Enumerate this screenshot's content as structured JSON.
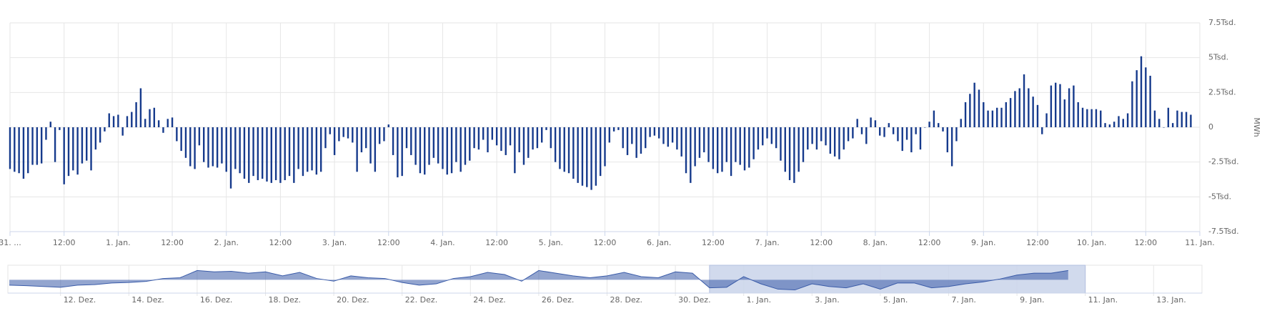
{
  "chart_data": [
    {
      "type": "bar",
      "y_label": "MWh",
      "color": "#163a8c",
      "grid": true,
      "xlim": [
        "31.12. 00:00",
        "11.01. 00:00"
      ],
      "ylim": [
        -7500,
        7500
      ],
      "yticks": [
        {
          "value": 7500,
          "label": "7.5Tsd."
        },
        {
          "value": 5000,
          "label": "5Tsd."
        },
        {
          "value": 2500,
          "label": "2.5Tsd."
        },
        0,
        {
          "value": -2500,
          "label": "-2.5Tsd."
        },
        {
          "value": -5000,
          "label": "-5Tsd."
        },
        {
          "value": -7500,
          "label": "-7.5Tsd."
        }
      ],
      "xticks": [
        {
          "value": "31.12. 00:00",
          "label": "31. ..."
        },
        {
          "value": "31.12. 12:00",
          "label": "12:00"
        },
        {
          "value": "01.01. 00:00",
          "label": "1. Jan."
        },
        {
          "value": "01.01. 12:00",
          "label": "12:00"
        },
        {
          "value": "02.01. 00:00",
          "label": "2. Jan."
        },
        {
          "value": "02.01. 12:00",
          "label": "12:00"
        },
        {
          "value": "03.01. 00:00",
          "label": "3. Jan."
        },
        {
          "value": "03.01. 12:00",
          "label": "12:00"
        },
        {
          "value": "04.01. 00:00",
          "label": "4. Jan."
        },
        {
          "value": "04.01. 12:00",
          "label": "12:00"
        },
        {
          "value": "05.01. 00:00",
          "label": "5. Jan."
        },
        {
          "value": "05.01. 12:00",
          "label": "12:00"
        },
        {
          "value": "06.01. 00:00",
          "label": "6. Jan."
        },
        {
          "value": "06.01. 12:00",
          "label": "12:00"
        },
        {
          "value": "07.01. 00:00",
          "label": "7. Jan."
        },
        {
          "value": "07.01. 12:00",
          "label": "12:00"
        },
        {
          "value": "08.01. 00:00",
          "label": "8. Jan."
        },
        {
          "value": "08.01. 12:00",
          "label": "12:00"
        },
        {
          "value": "09.01. 00:00",
          "label": "9. Jan."
        },
        {
          "value": "09.01. 12:00",
          "label": "12:00"
        },
        {
          "value": "10.01. 00:00",
          "label": "10. Jan."
        },
        {
          "value": "10.01. 12:00",
          "label": "12:00"
        },
        {
          "value": "11.01. 00:00",
          "label": "11. Jan."
        }
      ],
      "x": [
        "31.12. 00:00",
        "31.12. 01:00",
        "31.12. 02:00",
        "31.12. 03:00",
        "31.12. 04:00",
        "31.12. 05:00",
        "31.12. 06:00",
        "31.12. 07:00",
        "31.12. 08:00",
        "31.12. 09:00",
        "31.12. 10:00",
        "31.12. 11:00",
        "31.12. 12:00",
        "31.12. 13:00",
        "31.12. 14:00",
        "31.12. 15:00",
        "31.12. 16:00",
        "31.12. 17:00",
        "31.12. 18:00",
        "31.12. 19:00",
        "31.12. 20:00",
        "31.12. 21:00",
        "31.12. 22:00",
        "31.12. 23:00",
        "01.01. 00:00",
        "01.01. 01:00",
        "01.01. 02:00",
        "01.01. 03:00",
        "01.01. 04:00",
        "01.01. 05:00",
        "01.01. 06:00",
        "01.01. 07:00",
        "01.01. 08:00",
        "01.01. 09:00",
        "01.01. 10:00",
        "01.01. 11:00",
        "01.01. 12:00",
        "01.01. 13:00",
        "01.01. 14:00",
        "01.01. 15:00",
        "01.01. 16:00",
        "01.01. 17:00",
        "01.01. 18:00",
        "01.01. 19:00",
        "01.01. 20:00",
        "01.01. 21:00",
        "01.01. 22:00",
        "01.01. 23:00",
        "02.01. 00:00",
        "02.01. 01:00",
        "02.01. 02:00",
        "02.01. 03:00",
        "02.01. 04:00",
        "02.01. 05:00",
        "02.01. 06:00",
        "02.01. 07:00",
        "02.01. 08:00",
        "02.01. 09:00",
        "02.01. 10:00",
        "02.01. 11:00",
        "02.01. 12:00",
        "02.01. 13:00",
        "02.01. 14:00",
        "02.01. 15:00",
        "02.01. 16:00",
        "02.01. 17:00",
        "02.01. 18:00",
        "02.01. 19:00",
        "02.01. 20:00",
        "02.01. 21:00",
        "02.01. 22:00",
        "02.01. 23:00",
        "03.01. 00:00",
        "03.01. 01:00",
        "03.01. 02:00",
        "03.01. 03:00",
        "03.01. 04:00",
        "03.01. 05:00",
        "03.01. 06:00",
        "03.01. 07:00",
        "03.01. 08:00",
        "03.01. 09:00",
        "03.01. 10:00",
        "03.01. 11:00",
        "03.01. 12:00",
        "03.01. 13:00",
        "03.01. 14:00",
        "03.01. 15:00",
        "03.01. 16:00",
        "03.01. 17:00",
        "03.01. 18:00",
        "03.01. 19:00",
        "03.01. 20:00",
        "03.01. 21:00",
        "03.01. 22:00",
        "03.01. 23:00",
        "04.01. 00:00",
        "04.01. 01:00",
        "04.01. 02:00",
        "04.01. 03:00",
        "04.01. 04:00",
        "04.01. 05:00",
        "04.01. 06:00",
        "04.01. 07:00",
        "04.01. 08:00",
        "04.01. 09:00",
        "04.01. 10:00",
        "04.01. 11:00",
        "04.01. 12:00",
        "04.01. 13:00",
        "04.01. 14:00",
        "04.01. 15:00",
        "04.01. 16:00",
        "04.01. 17:00",
        "04.01. 18:00",
        "04.01. 19:00",
        "04.01. 20:00",
        "04.01. 21:00",
        "04.01. 22:00",
        "04.01. 23:00",
        "05.01. 00:00",
        "05.01. 01:00",
        "05.01. 02:00",
        "05.01. 03:00",
        "05.01. 04:00",
        "05.01. 05:00",
        "05.01. 06:00",
        "05.01. 07:00",
        "05.01. 08:00",
        "05.01. 09:00",
        "05.01. 10:00",
        "05.01. 11:00",
        "05.01. 12:00",
        "05.01. 13:00",
        "05.01. 14:00",
        "05.01. 15:00",
        "05.01. 16:00",
        "05.01. 17:00",
        "05.01. 18:00",
        "05.01. 19:00",
        "05.01. 20:00",
        "05.01. 21:00",
        "05.01. 22:00",
        "05.01. 23:00",
        "06.01. 00:00",
        "06.01. 01:00",
        "06.01. 02:00",
        "06.01. 03:00",
        "06.01. 04:00",
        "06.01. 05:00",
        "06.01. 06:00",
        "06.01. 07:00",
        "06.01. 08:00",
        "06.01. 09:00",
        "06.01. 10:00",
        "06.01. 11:00",
        "06.01. 12:00",
        "06.01. 13:00",
        "06.01. 14:00",
        "06.01. 15:00",
        "06.01. 16:00",
        "06.01. 17:00",
        "06.01. 18:00",
        "06.01. 19:00",
        "06.01. 20:00",
        "06.01. 21:00",
        "06.01. 22:00",
        "06.01. 23:00",
        "07.01. 00:00",
        "07.01. 01:00",
        "07.01. 02:00",
        "07.01. 03:00",
        "07.01. 04:00",
        "07.01. 05:00",
        "07.01. 06:00",
        "07.01. 07:00",
        "07.01. 08:00",
        "07.01. 09:00",
        "07.01. 10:00",
        "07.01. 11:00",
        "07.01. 12:00",
        "07.01. 13:00",
        "07.01. 14:00",
        "07.01. 15:00",
        "07.01. 16:00",
        "07.01. 17:00",
        "07.01. 18:00",
        "07.01. 19:00",
        "07.01. 20:00",
        "07.01. 21:00",
        "07.01. 22:00",
        "07.01. 23:00",
        "08.01. 00:00",
        "08.01. 01:00",
        "08.01. 02:00",
        "08.01. 03:00",
        "08.01. 04:00",
        "08.01. 05:00",
        "08.01. 06:00",
        "08.01. 07:00",
        "08.01. 08:00",
        "08.01. 09:00",
        "08.01. 10:00",
        "08.01. 11:00",
        "08.01. 12:00",
        "08.01. 13:00",
        "08.01. 14:00",
        "08.01. 15:00",
        "08.01. 16:00",
        "08.01. 17:00",
        "08.01. 18:00",
        "08.01. 19:00",
        "08.01. 20:00",
        "08.01. 21:00",
        "08.01. 22:00",
        "08.01. 23:00",
        "09.01. 00:00",
        "09.01. 01:00",
        "09.01. 02:00",
        "09.01. 03:00",
        "09.01. 04:00",
        "09.01. 05:00",
        "09.01. 06:00",
        "09.01. 07:00",
        "09.01. 08:00",
        "09.01. 09:00",
        "09.01. 10:00",
        "09.01. 11:00",
        "09.01. 12:00",
        "09.01. 13:00",
        "09.01. 14:00",
        "09.01. 15:00",
        "09.01. 16:00",
        "09.01. 17:00",
        "09.01. 18:00",
        "09.01. 19:00",
        "09.01. 20:00",
        "09.01. 21:00",
        "09.01. 22:00",
        "09.01. 23:00",
        "10.01. 00:00",
        "10.01. 01:00",
        "10.01. 02:00",
        "10.01. 03:00",
        "10.01. 04:00",
        "10.01. 05:00",
        "10.01. 06:00",
        "10.01. 07:00",
        "10.01. 08:00",
        "10.01. 09:00",
        "10.01. 10:00",
        "10.01. 11:00",
        "10.01. 12:00",
        "10.01. 13:00",
        "10.01. 14:00",
        "10.01. 15:00",
        "10.01. 16:00",
        "10.01. 17:00",
        "10.01. 18:00",
        "10.01. 19:00",
        "10.01. 20:00",
        "10.01. 21:00",
        "10.01. 22:00"
      ],
      "values": [
        -3000,
        -3200,
        -3300,
        -3700,
        -3300,
        -2700,
        -2700,
        -2600,
        -900,
        400,
        -2500,
        -200,
        -4100,
        -3500,
        -3100,
        -3400,
        -2600,
        -2400,
        -3100,
        -1600,
        -1100,
        -300,
        1000,
        800,
        900,
        -600,
        800,
        1100,
        1800,
        2800,
        600,
        1300,
        1400,
        500,
        -400,
        600,
        700,
        -1000,
        -1700,
        -2200,
        -2800,
        -3000,
        -1300,
        -2500,
        -2900,
        -2800,
        -2900,
        -2600,
        -3200,
        -4400,
        -3000,
        -3300,
        -3700,
        -4000,
        -3500,
        -3800,
        -3700,
        -3900,
        -4000,
        -3800,
        -4000,
        -3800,
        -3500,
        -4000,
        -3000,
        -3500,
        -3200,
        -3100,
        -3400,
        -3200,
        -1500,
        -500,
        -2000,
        -1000,
        -700,
        -800,
        -1100,
        -3200,
        -1800,
        -1500,
        -2600,
        -3200,
        -1200,
        -1000,
        200,
        -2000,
        -3600,
        -3500,
        -1500,
        -2000,
        -2700,
        -3300,
        -3400,
        -2700,
        -2200,
        -2600,
        -3000,
        -3400,
        -3300,
        -2500,
        -3200,
        -2700,
        -2400,
        -1500,
        -1600,
        -900,
        -1800,
        -900,
        -1300,
        -1700,
        -2000,
        -1300,
        -3300,
        -1800,
        -2700,
        -2200,
        -1600,
        -1500,
        -1100,
        -200,
        -1500,
        -2500,
        -3000,
        -3200,
        -3300,
        -3700,
        -4000,
        -4200,
        -4300,
        -4500,
        -4200,
        -3500,
        -2800,
        -1100,
        -300,
        -200,
        -1500,
        -2000,
        -1200,
        -2200,
        -1900,
        -1500,
        -700,
        -600,
        -800,
        -1200,
        -1400,
        -1100,
        -1600,
        -2100,
        -3300,
        -4000,
        -2800,
        -2200,
        -1800,
        -2500,
        -3000,
        -3300,
        -3200,
        -2500,
        -3500,
        -2500,
        -2700,
        -3100,
        -2900,
        -2300,
        -1600,
        -1300,
        -800,
        -1200,
        -1500,
        -2400,
        -3200,
        -3800,
        -4000,
        -3200,
        -2500,
        -1600,
        -1200,
        -1600,
        -1000,
        -1300,
        -1900,
        -2100,
        -2300,
        -1600,
        -1000,
        -800,
        600,
        -500,
        -1200,
        700,
        500,
        -600,
        -700,
        300,
        -500,
        -1000,
        -1700,
        -900,
        -1800,
        -500,
        -1600,
        0,
        400,
        1200,
        300,
        -300,
        -1800,
        -2800,
        -1000,
        600,
        1800,
        2400,
        3200,
        2700,
        1800,
        1200,
        1200,
        1400,
        1400,
        1800,
        2100,
        2600,
        2800,
        3800,
        2800,
        2200,
        1600,
        -500,
        1000,
        3000,
        3200,
        3100,
        2000,
        2800,
        3000,
        1800,
        1400,
        1300,
        1300,
        1300,
        1200,
        300,
        200,
        400,
        800,
        600,
        1000,
        3300,
        4100,
        5100,
        4300,
        3700,
        1200,
        600,
        0,
        1400,
        300,
        1200,
        1100,
        1100,
        900
      ]
    },
    {
      "type": "navigator",
      "color": "#3a5ba8",
      "selection_color": "#c9d3ea",
      "xlim": [
        "10.12. 11:00",
        "14.01. 10:00"
      ],
      "ylim": [
        -5000,
        5500
      ],
      "xticks": [
        {
          "value": "12.12. 00:00",
          "label": "12. Dez."
        },
        {
          "value": "14.12. 00:00",
          "label": "14. Dez."
        },
        {
          "value": "16.12. 00:00",
          "label": "16. Dez."
        },
        {
          "value": "18.12. 00:00",
          "label": "18. Dez."
        },
        {
          "value": "20.12. 00:00",
          "label": "20. Dez."
        },
        {
          "value": "22.12. 00:00",
          "label": "22. Dez."
        },
        {
          "value": "24.12. 00:00",
          "label": "24. Dez."
        },
        {
          "value": "26.12. 00:00",
          "label": "26. Dez."
        },
        {
          "value": "28.12. 00:00",
          "label": "28. Dez."
        },
        {
          "value": "30.12. 00:00",
          "label": "30. Dez."
        },
        {
          "value": "01.01. 00:00",
          "label": "1. Jan."
        },
        {
          "value": "03.01. 00:00",
          "label": "3. Jan."
        },
        {
          "value": "05.01. 00:00",
          "label": "5. Jan."
        },
        {
          "value": "07.01. 00:00",
          "label": "7. Jan."
        },
        {
          "value": "09.01. 00:00",
          "label": "9. Jan."
        },
        {
          "value": "11.01. 00:00",
          "label": "11. Jan."
        },
        {
          "value": "13.01. 00:00",
          "label": "13. Jan."
        }
      ],
      "x": [
        "10.12. 12:00",
        "11.12. 00:00",
        "11.12. 12:00",
        "12.12. 00:00",
        "12.12. 12:00",
        "13.12. 00:00",
        "13.12. 12:00",
        "14.12. 00:00",
        "14.12. 12:00",
        "15.12. 00:00",
        "15.12. 12:00",
        "16.12. 00:00",
        "16.12. 12:00",
        "17.12. 00:00",
        "17.12. 12:00",
        "18.12. 00:00",
        "18.12. 12:00",
        "19.12. 00:00",
        "19.12. 12:00",
        "20.12. 00:00",
        "20.12. 12:00",
        "21.12. 00:00",
        "21.12. 12:00",
        "22.12. 00:00",
        "22.12. 12:00",
        "23.12. 00:00",
        "23.12. 12:00",
        "24.12. 00:00",
        "24.12. 12:00",
        "25.12. 00:00",
        "25.12. 12:00",
        "26.12. 00:00",
        "26.12. 12:00",
        "27.12. 00:00",
        "27.12. 12:00",
        "28.12. 00:00",
        "28.12. 12:00",
        "29.12. 00:00",
        "29.12. 12:00",
        "30.12. 00:00",
        "30.12. 12:00",
        "31.12. 00:00",
        "31.12. 12:00",
        "01.01. 00:00",
        "01.01. 12:00",
        "02.01. 00:00",
        "02.01. 12:00",
        "03.01. 00:00",
        "03.01. 12:00",
        "04.01. 00:00",
        "04.01. 12:00",
        "05.01. 00:00",
        "05.01. 12:00",
        "06.01. 00:00",
        "06.01. 12:00",
        "07.01. 00:00",
        "07.01. 12:00",
        "08.01. 00:00",
        "08.01. 12:00",
        "09.01. 00:00",
        "09.01. 12:00",
        "10.01. 00:00",
        "10.01. 12:00"
      ],
      "values": [
        -2000,
        -2200,
        -2500,
        -2800,
        -2000,
        -1800,
        -1200,
        -1000,
        -600,
        500,
        800,
        3500,
        3000,
        3200,
        2500,
        3000,
        1500,
        2800,
        500,
        -500,
        1500,
        800,
        500,
        -1000,
        -2000,
        -1500,
        500,
        1200,
        2800,
        2000,
        -500,
        3500,
        2500,
        1500,
        800,
        1500,
        2800,
        1200,
        800,
        3000,
        2500,
        -3000,
        -2800,
        1200,
        -1500,
        -3500,
        -3800,
        -1500,
        -2500,
        -3000,
        -1500,
        -3500,
        -1200,
        -1200,
        -3000,
        -2500,
        -1500,
        -800,
        300,
        1800,
        2500,
        2500,
        3500
      ]
    }
  ]
}
